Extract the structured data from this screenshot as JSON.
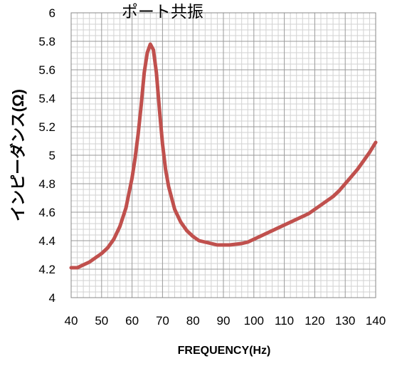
{
  "chart_data": {
    "type": "line",
    "title": "",
    "xlabel": "FREQUENCY(Hz)",
    "ylabel": "インピーダンス(Ω)",
    "xlim": [
      40,
      140
    ],
    "ylim": [
      4,
      6
    ],
    "xticks": [
      40,
      50,
      60,
      70,
      80,
      90,
      100,
      110,
      120,
      130,
      140
    ],
    "yticks": [
      4,
      4.2,
      4.4,
      4.6,
      4.8,
      5,
      5.2,
      5.4,
      5.6,
      5.8,
      6
    ],
    "ytick_labels": [
      "4",
      "4.2",
      "4.4",
      "4.6",
      "4.8",
      "5",
      "5.2",
      "5.4",
      "5.6",
      "5.8",
      "6"
    ],
    "grid": true,
    "line_color": "#c0504d",
    "annotations": [
      {
        "text": "ポート共振",
        "x": 70,
        "y": 5.97
      }
    ],
    "series": [
      {
        "x": [
          40,
          42,
          44,
          46,
          48,
          50,
          52,
          54,
          56,
          58,
          60,
          61,
          62,
          63,
          64,
          65,
          66,
          67,
          68,
          69,
          70,
          71,
          72,
          74,
          76,
          78,
          80,
          82,
          84,
          86,
          88,
          90,
          92,
          94,
          96,
          98,
          100,
          102,
          104,
          106,
          108,
          110,
          112,
          114,
          116,
          118,
          120,
          122,
          124,
          126,
          128,
          130,
          132,
          134,
          136,
          138,
          140
        ],
        "y": [
          4.21,
          4.21,
          4.23,
          4.25,
          4.28,
          4.31,
          4.35,
          4.41,
          4.5,
          4.63,
          4.84,
          4.98,
          5.15,
          5.35,
          5.58,
          5.72,
          5.78,
          5.74,
          5.58,
          5.32,
          5.08,
          4.9,
          4.78,
          4.62,
          4.53,
          4.47,
          4.43,
          4.4,
          4.39,
          4.38,
          4.37,
          4.37,
          4.37,
          4.375,
          4.38,
          4.39,
          4.41,
          4.43,
          4.45,
          4.47,
          4.49,
          4.51,
          4.53,
          4.55,
          4.57,
          4.59,
          4.62,
          4.65,
          4.68,
          4.71,
          4.75,
          4.8,
          4.85,
          4.9,
          4.96,
          5.02,
          5.09
        ]
      }
    ]
  }
}
